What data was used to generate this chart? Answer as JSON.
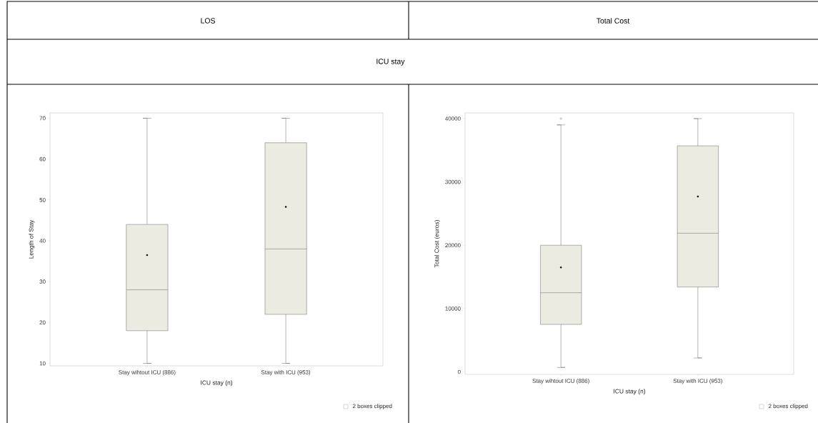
{
  "chart_data": [
    {
      "type": "box",
      "title": "LOS",
      "subtitle": "ICU stay",
      "xlabel": "ICU stay (n)",
      "ylabel": "Length of Stay",
      "categories": [
        "Stay wihtout ICU (886)",
        "Stay with ICU (953)"
      ],
      "color": "#ecebe2",
      "boxes": [
        {
          "low": 10,
          "q1": 18,
          "median": 28,
          "q3": 44,
          "high": 70,
          "mean": 36.5
        },
        {
          "low": 10,
          "q1": 22,
          "median": 38,
          "q3": 64,
          "high": 70,
          "mean": 48.3
        }
      ],
      "ylim": [
        9.4,
        71.3
      ],
      "yticks": [
        10,
        20,
        30,
        40,
        50,
        60,
        70
      ],
      "annotations": [
        "2 boxes clipped"
      ]
    },
    {
      "type": "box",
      "title": "Total Cost",
      "xlabel": "ICU stay (n)",
      "ylabel": "Total Cost (euros)",
      "categories": [
        "Stay wihtout ICU (886)",
        "Stay with ICU (953)"
      ],
      "color": "#ecebe2",
      "boxes": [
        {
          "low": 700,
          "q1": 7500,
          "median": 12500,
          "q3": 20000,
          "high": 39000,
          "mean": 16500,
          "outliers": [
            40000
          ]
        },
        {
          "low": 2200,
          "q1": 13400,
          "median": 21900,
          "q3": 35700,
          "high": 40000,
          "mean": 27700
        }
      ],
      "ylim": [
        -400,
        40900
      ],
      "yticks": [
        0,
        10000,
        20000,
        30000,
        40000
      ],
      "annotations": [
        "2 boxes clipped"
      ]
    }
  ]
}
